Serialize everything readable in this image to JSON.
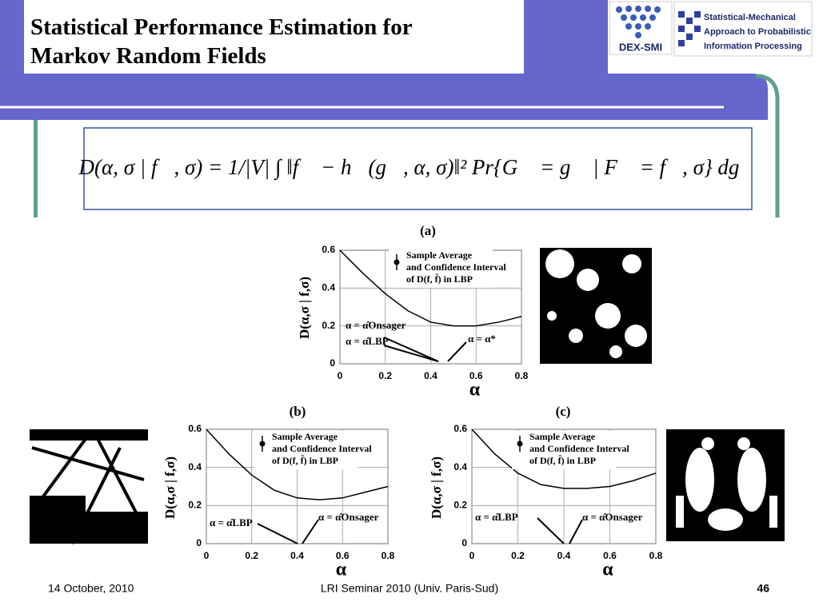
{
  "header": {
    "title": "Statistical Performance Estimation for Markov Random Fields"
  },
  "logos": {
    "left": "DEX-SMI",
    "right_lines": [
      "Statistical-Mechanical",
      "Approach to Probabilistic",
      "Information Processing"
    ]
  },
  "equation": "D(α, σ | f⃗, σ) = 1/|V| ∫ ‖f⃗ − h⃗(g⃗, α, σ)‖² Pr{G⃗ = g⃗ | F⃗ = f⃗, σ} dg⃗",
  "charts": [
    {
      "type": "line",
      "label": "(a)",
      "x": [
        0,
        0.1,
        0.2,
        0.3,
        0.4,
        0.5,
        0.6,
        0.7,
        0.8
      ],
      "values": [
        0.6,
        0.48,
        0.37,
        0.28,
        0.22,
        0.2,
        0.2,
        0.22,
        0.25
      ],
      "xlim": [
        0,
        0.8
      ],
      "ylim": [
        0,
        0.6
      ],
      "xticks": [
        0,
        0.2,
        0.4,
        0.6,
        0.8
      ],
      "yticks": [
        0,
        0.2,
        0.4,
        0.6
      ],
      "grid": true,
      "color": "#000000",
      "y_label": "D(α,σ | f,σ)",
      "x_label": "α",
      "legend": [
        "Sample Average",
        "and Confidence Interval",
        "of D(f, f̂) in LBP"
      ],
      "annotations": [
        "α = α̂Onsager",
        "α = α̂LBP",
        "α = α*"
      ]
    },
    {
      "type": "line",
      "label": "(b)",
      "x": [
        0,
        0.1,
        0.2,
        0.3,
        0.4,
        0.5,
        0.6,
        0.7,
        0.8
      ],
      "values": [
        0.6,
        0.47,
        0.36,
        0.28,
        0.24,
        0.23,
        0.24,
        0.27,
        0.3
      ],
      "xlim": [
        0,
        0.8
      ],
      "ylim": [
        0,
        0.6
      ],
      "xticks": [
        0,
        0.2,
        0.4,
        0.6,
        0.8
      ],
      "yticks": [
        0,
        0.2,
        0.4,
        0.6
      ],
      "grid": true,
      "color": "#000000",
      "y_label": "D(α,σ | f,σ)",
      "x_label": "α",
      "legend": [
        "Sample Average",
        "and Confidence Interval",
        "of D(f, f̂) in LBP"
      ],
      "annotations": [
        "α = α̂LBP",
        "α = α̂Onsager"
      ]
    },
    {
      "type": "line",
      "label": "(c)",
      "x": [
        0,
        0.1,
        0.2,
        0.3,
        0.4,
        0.5,
        0.6,
        0.7,
        0.8
      ],
      "values": [
        0.6,
        0.47,
        0.37,
        0.31,
        0.29,
        0.29,
        0.3,
        0.33,
        0.37
      ],
      "xlim": [
        0,
        0.8
      ],
      "ylim": [
        0,
        0.6
      ],
      "xticks": [
        0,
        0.2,
        0.4,
        0.6,
        0.8
      ],
      "yticks": [
        0,
        0.2,
        0.4,
        0.6
      ],
      "grid": true,
      "color": "#000000",
      "y_label": "D(α,σ | f,σ)",
      "x_label": "α",
      "legend": [
        "Sample Average",
        "and Confidence Interval",
        "of D(f, f̂) in LBP"
      ],
      "annotations": [
        "α = α̂LBP",
        "α = α̂Onsager"
      ]
    }
  ],
  "footer": {
    "date": "14 October, 2010",
    "event": "LRI Seminar 2010 (Univ. Paris-Sud)",
    "page": "46"
  }
}
